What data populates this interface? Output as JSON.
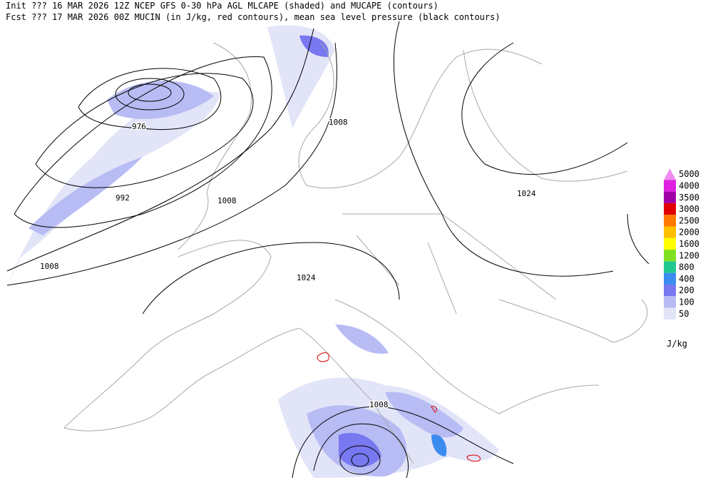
{
  "header": {
    "line1": "Init  ??? 16 MAR 2026 12Z   NCEP GFS 0-30 hPa AGL MLCAPE (shaded) and MUCAPE (contours)",
    "line2": "Fcst ??? 17 MAR 2026 00Z   MUCIN (in J/kg, red contours), mean sea level pressure (black contours)"
  },
  "isobar_labels": [
    "976",
    "992",
    "1008",
    "1008",
    "1008",
    "1024",
    "1024",
    "1008"
  ],
  "legend": {
    "unit": "J/kg",
    "items": [
      {
        "label": "5000",
        "color": "#f08cf0"
      },
      {
        "label": "4000",
        "color": "#e020e0"
      },
      {
        "label": "3500",
        "color": "#a000a8"
      },
      {
        "label": "3000",
        "color": "#e00000"
      },
      {
        "label": "2500",
        "color": "#ff7800"
      },
      {
        "label": "2000",
        "color": "#ffc000"
      },
      {
        "label": "1600",
        "color": "#ffff00"
      },
      {
        "label": "1200",
        "color": "#80e020"
      },
      {
        "label": "800",
        "color": "#20c890"
      },
      {
        "label": "400",
        "color": "#3c8cf0"
      },
      {
        "label": "200",
        "color": "#7878f0"
      },
      {
        "label": "100",
        "color": "#b8bcf4"
      },
      {
        "label": "50",
        "color": "#e2e4f8"
      }
    ]
  }
}
